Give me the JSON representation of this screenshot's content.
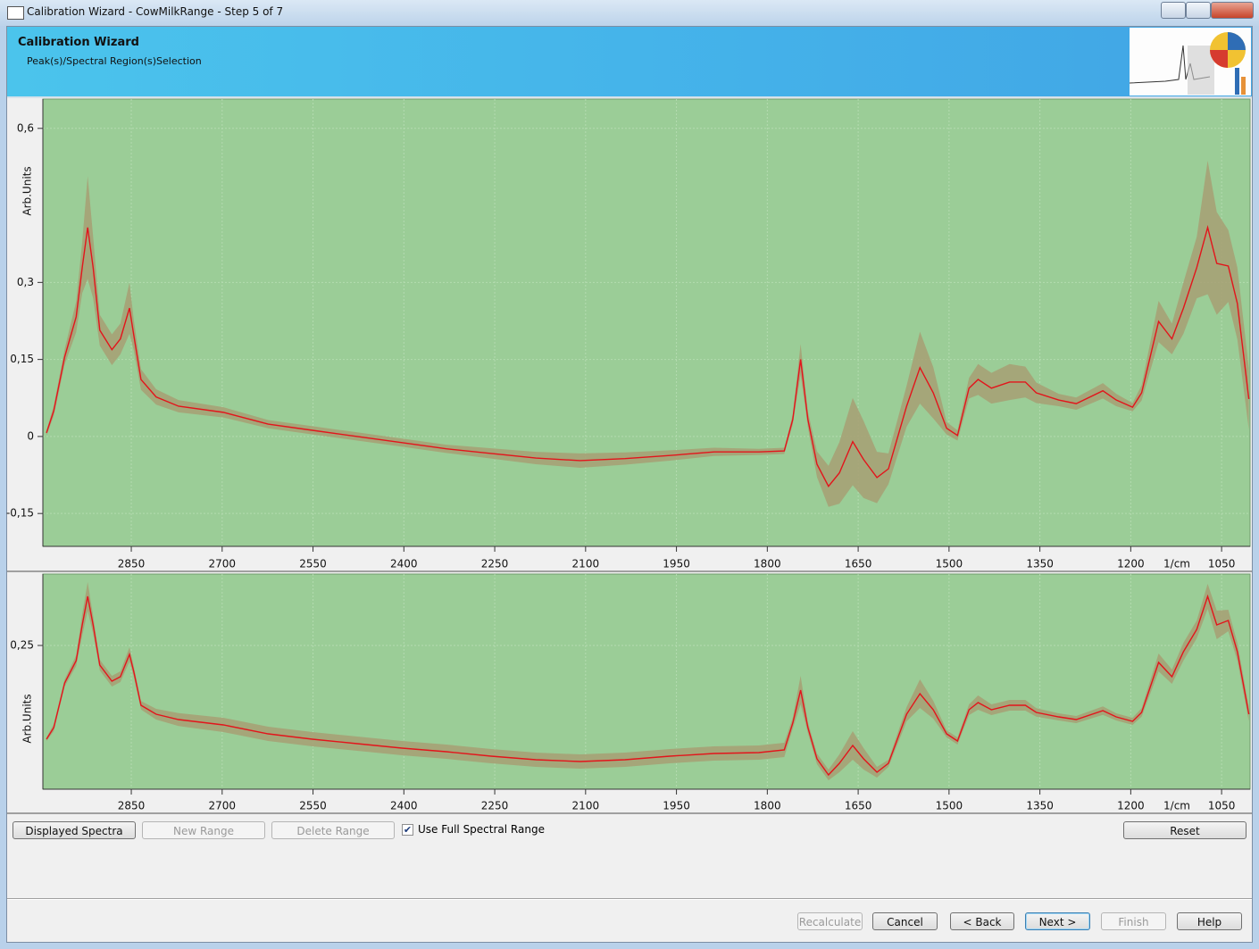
{
  "window": {
    "title": "Calibration Wizard - CowMilkRange - Step 5 of 7"
  },
  "header": {
    "title": "Calibration Wizard",
    "subtitle": "Peak(s)/Spectral Region(s)Selection"
  },
  "toolbar": {
    "buttons": [
      {
        "label": "Displayed Spectra",
        "enabled": true
      },
      {
        "label": "New Range",
        "enabled": false
      },
      {
        "label": "Delete Range",
        "enabled": false
      }
    ],
    "checkbox": {
      "label": "Use Full Spectral Range",
      "checked": true
    },
    "reset": "Reset"
  },
  "footer": {
    "buttons": [
      {
        "label": "Recalculate",
        "enabled": false
      },
      {
        "label": "Cancel",
        "enabled": true
      },
      {
        "label": "< Back",
        "enabled": true
      },
      {
        "label": "Next >",
        "enabled": true
      },
      {
        "label": "Finish",
        "enabled": false
      },
      {
        "label": "Help",
        "enabled": true
      }
    ]
  },
  "chart_data": [
    {
      "type": "line",
      "y_label": "Arb.Units",
      "x_label": "1/cm",
      "grid": true,
      "xlim": [
        2996,
        1003
      ],
      "ylim": [
        -0.214,
        0.657
      ],
      "xticks": [
        2850,
        2700,
        2550,
        2400,
        2250,
        2100,
        1950,
        1800,
        1650,
        1500,
        1350,
        1200,
        1050
      ],
      "yticks": [
        {
          "value": -0.15,
          "label": "-0,15"
        },
        {
          "value": 0,
          "label": "0"
        },
        {
          "value": 0.15,
          "label": "0,15"
        },
        {
          "value": 0.3,
          "label": "0,3"
        },
        {
          "value": 0.6,
          "label": "0,6"
        }
      ],
      "x": [
        2990,
        2978,
        2960,
        2941,
        2931,
        2922,
        2913,
        2902,
        2882,
        2868,
        2853,
        2846,
        2834,
        2809,
        2772,
        2698,
        2624,
        2551,
        2477,
        2403,
        2330,
        2256,
        2182,
        2109,
        2035,
        1961,
        1888,
        1814,
        1772,
        1758,
        1745,
        1733,
        1718,
        1699,
        1681,
        1659,
        1641,
        1619,
        1600,
        1570,
        1548,
        1526,
        1504,
        1486,
        1467,
        1452,
        1430,
        1400,
        1374,
        1356,
        1319,
        1290,
        1246,
        1224,
        1197,
        1182,
        1154,
        1132,
        1113,
        1091,
        1073,
        1058,
        1039,
        1024,
        1005
      ],
      "series": [
        {
          "color": "#e3141b",
          "band_color": "#a79f73",
          "values": [
            0.007,
            0.05,
            0.155,
            0.233,
            0.329,
            0.407,
            0.329,
            0.207,
            0.169,
            0.19,
            0.25,
            0.198,
            0.111,
            0.077,
            0.059,
            0.047,
            0.024,
            0.012,
            0,
            -0.012,
            -0.024,
            -0.033,
            -0.042,
            -0.047,
            -0.043,
            -0.037,
            -0.03,
            -0.03,
            -0.028,
            0.033,
            0.15,
            0.033,
            -0.054,
            -0.097,
            -0.071,
            -0.01,
            -0.045,
            -0.08,
            -0.063,
            0.059,
            0.134,
            0.085,
            0.016,
            0.002,
            0.094,
            0.111,
            0.094,
            0.106,
            0.106,
            0.085,
            0.071,
            0.064,
            0.089,
            0.071,
            0.057,
            0.085,
            0.224,
            0.19,
            0.25,
            0.329,
            0.407,
            0.337,
            0.332,
            0.259,
            0.073
          ],
          "errors": [
            0.005,
            0.01,
            0.015,
            0.03,
            0.05,
            0.1,
            0.06,
            0.03,
            0.03,
            0.03,
            0.05,
            0.03,
            0.02,
            0.015,
            0.012,
            0.01,
            0.008,
            0.008,
            0.008,
            0.008,
            0.008,
            0.01,
            0.012,
            0.014,
            0.012,
            0.01,
            0.008,
            0.006,
            0.006,
            0.01,
            0.03,
            0.015,
            0.025,
            0.04,
            0.06,
            0.085,
            0.075,
            0.05,
            0.03,
            0.04,
            0.07,
            0.05,
            0.012,
            0.01,
            0.02,
            0.03,
            0.03,
            0.035,
            0.03,
            0.02,
            0.012,
            0.012,
            0.015,
            0.012,
            0.008,
            0.015,
            0.04,
            0.03,
            0.05,
            0.06,
            0.13,
            0.1,
            0.07,
            0.07,
            0.06
          ]
        }
      ]
    },
    {
      "type": "line",
      "y_label": "Arb.Units",
      "x_label": "1/cm",
      "grid": true,
      "xlim": [
        2996,
        1003
      ],
      "ylim": [
        -0.1525,
        0.45
      ],
      "xticks": [
        2850,
        2700,
        2550,
        2400,
        2250,
        2100,
        1950,
        1800,
        1650,
        1500,
        1350,
        1200,
        1050
      ],
      "yticks": [
        {
          "value": 0.25,
          "label": "0,25"
        }
      ],
      "x": [
        2990,
        2978,
        2960,
        2941,
        2931,
        2922,
        2913,
        2902,
        2882,
        2868,
        2853,
        2846,
        2834,
        2809,
        2772,
        2698,
        2624,
        2551,
        2477,
        2403,
        2330,
        2256,
        2182,
        2109,
        2035,
        1961,
        1888,
        1814,
        1772,
        1758,
        1745,
        1733,
        1718,
        1699,
        1681,
        1659,
        1641,
        1619,
        1600,
        1570,
        1548,
        1526,
        1504,
        1486,
        1467,
        1452,
        1430,
        1400,
        1374,
        1356,
        1319,
        1290,
        1246,
        1224,
        1197,
        1182,
        1154,
        1132,
        1113,
        1091,
        1073,
        1058,
        1039,
        1024,
        1005
      ],
      "series": [
        {
          "color": "#e3141b",
          "band_color": "#a79f73",
          "values": [
            -0.0125,
            0.02,
            0.145,
            0.2075,
            0.3075,
            0.3875,
            0.3075,
            0.195,
            0.15,
            0.1625,
            0.225,
            0.1775,
            0.0825,
            0.0575,
            0.0425,
            0.0275,
            0.0025,
            -0.0125,
            -0.025,
            -0.0375,
            -0.0475,
            -0.06,
            -0.07,
            -0.075,
            -0.07,
            -0.06,
            -0.0525,
            -0.05,
            -0.0425,
            0.0325,
            0.125,
            0.02,
            -0.0675,
            -0.1125,
            -0.08,
            -0.03,
            -0.0675,
            -0.105,
            -0.08,
            0.0575,
            0.115,
            0.07,
            0.0025,
            -0.0175,
            0.07,
            0.09,
            0.07,
            0.0825,
            0.0825,
            0.0625,
            0.05,
            0.0425,
            0.0675,
            0.05,
            0.0375,
            0.0625,
            0.2025,
            0.1625,
            0.2325,
            0.295,
            0.3875,
            0.3075,
            0.32,
            0.2325,
            0.0575
          ],
          "errors": [
            0.005,
            0.01,
            0.01,
            0.015,
            0.03,
            0.04,
            0.025,
            0.015,
            0.015,
            0.015,
            0.02,
            0.015,
            0.012,
            0.015,
            0.018,
            0.02,
            0.02,
            0.02,
            0.02,
            0.02,
            0.02,
            0.02,
            0.02,
            0.02,
            0.02,
            0.02,
            0.02,
            0.02,
            0.02,
            0.015,
            0.04,
            0.015,
            0.015,
            0.015,
            0.025,
            0.04,
            0.03,
            0.015,
            0.01,
            0.02,
            0.04,
            0.025,
            0.01,
            0.01,
            0.015,
            0.02,
            0.015,
            0.015,
            0.015,
            0.012,
            0.01,
            0.01,
            0.012,
            0.01,
            0.01,
            0.012,
            0.025,
            0.02,
            0.025,
            0.025,
            0.035,
            0.04,
            0.03,
            0.025,
            0.02
          ]
        }
      ]
    }
  ]
}
